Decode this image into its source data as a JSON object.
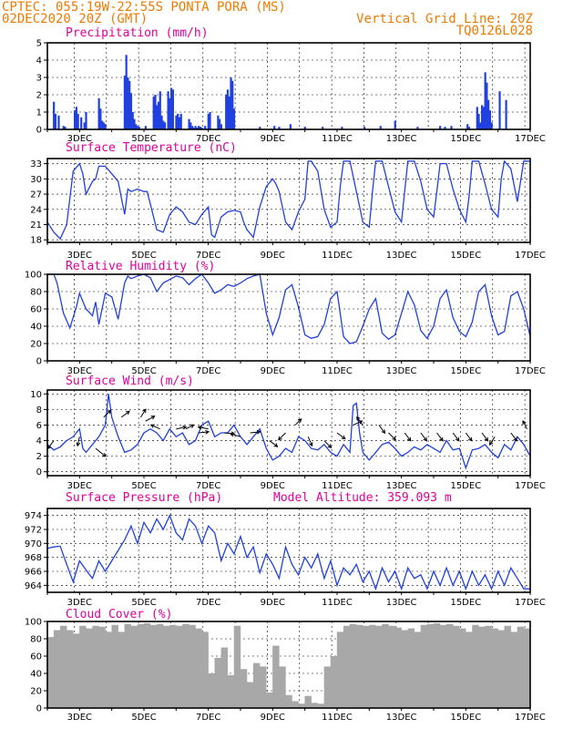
{
  "header": {
    "line1_left": "CPTEC:  055:19W-22:55S  PONTA PORA (MS)",
    "line2_left": "02DEC2020 20Z (GMT)",
    "line1_right": "Vertical Grid Line: 20Z",
    "line2_right": "TQ0126L028"
  },
  "colors": {
    "header": "#f07a00",
    "panel_title": "#e0009a",
    "series_line": "#2040e0",
    "precip_bar": "#2040e0",
    "cloud_bar": "#a8a8a8"
  },
  "x_axis": {
    "start_day": 2.0,
    "end_day": 17.0,
    "labels": [
      "3DEC",
      "5DEC",
      "7DEC",
      "9DEC",
      "11DEC",
      "13DEC",
      "15DEC",
      "17DEC"
    ],
    "label_days": [
      3,
      5,
      7,
      9,
      11,
      13,
      15,
      17
    ]
  },
  "chart_data": [
    {
      "id": "precip",
      "type": "bar",
      "title": "Precipitation (mm/h)",
      "ylim": [
        0,
        5
      ],
      "yticks": [
        0,
        1,
        2,
        3,
        4,
        5
      ],
      "grid": true,
      "x": [
        2.2,
        2.25,
        2.35,
        2.5,
        2.55,
        2.85,
        2.9,
        2.95,
        3.05,
        3.15,
        3.2,
        3.6,
        3.65,
        3.7,
        3.75,
        3.8,
        4.4,
        4.45,
        4.5,
        4.55,
        4.6,
        4.65,
        4.7,
        4.75,
        4.8,
        4.85,
        5.05,
        5.3,
        5.35,
        5.4,
        5.45,
        5.5,
        5.55,
        5.6,
        5.65,
        5.75,
        5.8,
        5.85,
        5.9,
        6.0,
        6.05,
        6.1,
        6.15,
        6.4,
        6.45,
        6.5,
        6.55,
        6.6,
        6.65,
        6.7,
        6.75,
        6.8,
        6.9,
        7.0,
        7.05,
        7.3,
        7.35,
        7.4,
        7.55,
        7.6,
        7.65,
        7.7,
        7.75,
        7.8,
        8.6,
        9.05,
        9.2,
        9.55,
        10.0,
        10.55,
        11.15,
        11.85,
        12.35,
        12.8,
        13.5,
        14.2,
        14.35,
        14.55,
        15.05,
        15.1,
        15.35,
        15.4,
        15.45,
        15.5,
        15.55,
        15.6,
        15.65,
        15.7,
        15.75,
        15.8,
        16.05,
        16.25
      ],
      "values": [
        1.6,
        0.9,
        0.8,
        0.2,
        0.15,
        1.1,
        1.3,
        0.9,
        0.7,
        0.4,
        1.0,
        1.8,
        1.2,
        0.5,
        0.4,
        0.3,
        3.1,
        4.3,
        3.0,
        2.8,
        2.1,
        1.0,
        0.6,
        0.3,
        0.2,
        0.15,
        0.2,
        1.9,
        2.0,
        1.4,
        1.6,
        2.2,
        0.8,
        0.5,
        0.4,
        2.2,
        1.8,
        2.4,
        2.3,
        0.8,
        0.9,
        0.7,
        0.9,
        0.6,
        0.4,
        0.2,
        0.1,
        0.2,
        0.1,
        0.2,
        0.15,
        0.1,
        0.2,
        0.9,
        1.0,
        0.8,
        0.6,
        0.3,
        2.0,
        2.3,
        1.9,
        3.0,
        2.8,
        1.2,
        0.15,
        0.2,
        0.15,
        0.3,
        0.15,
        0.15,
        0.15,
        0.15,
        0.2,
        0.5,
        0.15,
        0.2,
        0.15,
        0.2,
        0.3,
        0.15,
        1.3,
        0.9,
        0.4,
        1.4,
        1.3,
        3.3,
        2.7,
        1.7,
        1.1,
        0.4,
        2.2,
        1.7
      ]
    },
    {
      "id": "temperature",
      "type": "line",
      "title": "Surface Temperature (nC)",
      "ylim": [
        17.5,
        34
      ],
      "yticks": [
        18,
        21,
        24,
        27,
        30,
        33
      ],
      "grid": true,
      "x": [
        2.0,
        2.2,
        2.4,
        2.6,
        2.8,
        3.0,
        3.1,
        3.2,
        3.4,
        3.5,
        3.6,
        3.8,
        4.0,
        4.2,
        4.4,
        4.5,
        4.6,
        4.8,
        5.0,
        5.1,
        5.2,
        5.4,
        5.6,
        5.8,
        6.0,
        6.1,
        6.2,
        6.4,
        6.6,
        6.8,
        7.0,
        7.1,
        7.2,
        7.4,
        7.6,
        7.8,
        8.0,
        8.1,
        8.2,
        8.4,
        8.6,
        8.8,
        9.0,
        9.1,
        9.2,
        9.4,
        9.6,
        9.8,
        10.0,
        10.1,
        10.2,
        10.4,
        10.6,
        10.8,
        11.0,
        11.1,
        11.2,
        11.4,
        11.6,
        11.8,
        12.0,
        12.1,
        12.2,
        12.4,
        12.6,
        12.8,
        13.0,
        13.1,
        13.2,
        13.4,
        13.6,
        13.8,
        14.0,
        14.1,
        14.2,
        14.4,
        14.6,
        14.8,
        15.0,
        15.1,
        15.2,
        15.4,
        15.6,
        15.8,
        16.0,
        16.1,
        16.2,
        16.4,
        16.6,
        16.8,
        17.0
      ],
      "values": [
        21.5,
        19.5,
        18.2,
        21,
        31.5,
        33,
        31,
        27,
        29.5,
        30,
        32.5,
        32.5,
        31,
        29.5,
        23,
        28,
        27.5,
        28,
        27.5,
        27.5,
        25,
        20,
        19.5,
        23,
        24.5,
        24,
        23.5,
        21.5,
        21,
        23,
        24.5,
        19,
        18.5,
        22.5,
        23.5,
        23.8,
        23.5,
        21.5,
        20,
        18.5,
        24.5,
        28.5,
        30,
        29,
        27.5,
        21.5,
        20,
        23.5,
        26,
        33.5,
        33.5,
        31.5,
        24,
        20.5,
        21.5,
        28.5,
        33.5,
        33.5,
        27.5,
        21.5,
        20.5,
        27.5,
        33.5,
        33.5,
        28.5,
        23.5,
        21.5,
        27.5,
        33.5,
        33.5,
        29.5,
        24,
        22.5,
        27.5,
        33,
        33,
        28,
        24,
        21.5,
        26.5,
        33.5,
        33.5,
        29,
        24,
        22.5,
        30,
        33.5,
        32,
        25.5,
        33.5,
        33.5
      ]
    },
    {
      "id": "humidity",
      "type": "line",
      "title": "Relative Humidity (%)",
      "ylim": [
        0,
        100
      ],
      "yticks": [
        0,
        20,
        40,
        60,
        80,
        100
      ],
      "grid": true,
      "x": [
        2.0,
        2.2,
        2.3,
        2.5,
        2.7,
        2.9,
        3.0,
        3.2,
        3.4,
        3.5,
        3.6,
        3.8,
        4.0,
        4.2,
        4.4,
        4.5,
        4.6,
        4.8,
        5.0,
        5.2,
        5.4,
        5.6,
        5.8,
        6.0,
        6.2,
        6.4,
        6.6,
        6.8,
        7.0,
        7.2,
        7.4,
        7.6,
        7.8,
        8.0,
        8.2,
        8.4,
        8.6,
        8.8,
        9.0,
        9.2,
        9.4,
        9.6,
        9.8,
        10.0,
        10.2,
        10.4,
        10.6,
        10.8,
        11.0,
        11.2,
        11.4,
        11.6,
        11.8,
        12.0,
        12.2,
        12.4,
        12.6,
        12.8,
        13.0,
        13.2,
        13.4,
        13.6,
        13.8,
        14.0,
        14.2,
        14.4,
        14.6,
        14.8,
        15.0,
        15.2,
        15.4,
        15.6,
        15.8,
        16.0,
        16.2,
        16.4,
        16.6,
        16.8,
        17.0
      ],
      "values": [
        100,
        100,
        90,
        55,
        38,
        62,
        78,
        60,
        52,
        68,
        42,
        78,
        74,
        48,
        90,
        98,
        95,
        98,
        100,
        96,
        80,
        90,
        94,
        98,
        96,
        88,
        95,
        100,
        90,
        78,
        82,
        88,
        86,
        90,
        95,
        98,
        100,
        55,
        30,
        50,
        82,
        88,
        62,
        30,
        26,
        28,
        42,
        72,
        80,
        28,
        20,
        22,
        40,
        60,
        72,
        32,
        25,
        30,
        55,
        80,
        65,
        35,
        26,
        40,
        72,
        82,
        50,
        34,
        28,
        45,
        80,
        88,
        52,
        30,
        34,
        75,
        80,
        60,
        28
      ]
    },
    {
      "id": "wind",
      "type": "line",
      "title": "Surface Wind (m/s)",
      "ylim": [
        -0.5,
        10.5
      ],
      "yticks": [
        0,
        2,
        4,
        6,
        8,
        10
      ],
      "grid": true,
      "x": [
        2.0,
        2.2,
        2.4,
        2.6,
        2.8,
        3.0,
        3.1,
        3.2,
        3.4,
        3.6,
        3.8,
        3.9,
        4.0,
        4.2,
        4.4,
        4.6,
        4.8,
        5.0,
        5.2,
        5.4,
        5.6,
        5.8,
        6.0,
        6.2,
        6.4,
        6.6,
        6.8,
        7.0,
        7.2,
        7.4,
        7.6,
        7.8,
        8.0,
        8.2,
        8.4,
        8.6,
        8.8,
        9.0,
        9.2,
        9.4,
        9.6,
        9.8,
        10.0,
        10.2,
        10.4,
        10.6,
        10.8,
        11.0,
        11.2,
        11.4,
        11.5,
        11.6,
        11.7,
        11.8,
        12.0,
        12.2,
        12.4,
        12.6,
        12.8,
        13.0,
        13.2,
        13.4,
        13.6,
        13.8,
        14.0,
        14.2,
        14.4,
        14.6,
        14.8,
        15.0,
        15.2,
        15.4,
        15.6,
        15.8,
        16.0,
        16.2,
        16.4,
        16.6,
        16.8,
        17.0
      ],
      "values": [
        3.5,
        2.8,
        3.2,
        4.0,
        4.5,
        5.5,
        3.0,
        2.5,
        3.5,
        4.5,
        6.0,
        10.0,
        7.0,
        4.5,
        2.5,
        2.8,
        3.5,
        5.0,
        5.5,
        5.0,
        4.0,
        5.5,
        4.5,
        5.0,
        3.5,
        4.0,
        6.0,
        6.5,
        4.5,
        5.0,
        5.0,
        6.0,
        4.5,
        3.5,
        4.5,
        5.5,
        3.0,
        1.5,
        2.0,
        3.0,
        2.5,
        4.5,
        4.0,
        3.0,
        2.8,
        3.5,
        2.5,
        2.0,
        3.5,
        2.5,
        8.5,
        8.8,
        5.0,
        2.5,
        1.5,
        2.5,
        3.5,
        3.8,
        3.0,
        2.0,
        2.5,
        3.2,
        2.8,
        3.5,
        3.0,
        2.5,
        4.0,
        2.8,
        3.0,
        0.5,
        2.8,
        3.0,
        3.5,
        2.5,
        1.8,
        3.5,
        2.8,
        4.5,
        3.5,
        2.0
      ]
    },
    {
      "id": "pressure",
      "type": "line",
      "title": "Surface Pressure (hPa)",
      "ylim": [
        963,
        975
      ],
      "yticks": [
        964,
        966,
        968,
        970,
        972,
        974
      ],
      "grid": true,
      "annotation": "Model Altitude: 359.093 m",
      "x": [
        2.0,
        2.2,
        2.4,
        2.6,
        2.8,
        3.0,
        3.2,
        3.4,
        3.6,
        3.8,
        4.0,
        4.2,
        4.4,
        4.6,
        4.8,
        5.0,
        5.2,
        5.4,
        5.6,
        5.8,
        6.0,
        6.2,
        6.4,
        6.6,
        6.8,
        7.0,
        7.2,
        7.4,
        7.6,
        7.8,
        8.0,
        8.2,
        8.4,
        8.6,
        8.8,
        9.0,
        9.2,
        9.4,
        9.6,
        9.8,
        10.0,
        10.2,
        10.4,
        10.6,
        10.8,
        11.0,
        11.2,
        11.4,
        11.6,
        11.8,
        12.0,
        12.2,
        12.4,
        12.6,
        12.8,
        13.0,
        13.2,
        13.4,
        13.6,
        13.8,
        14.0,
        14.2,
        14.4,
        14.6,
        14.8,
        15.0,
        15.2,
        15.4,
        15.6,
        15.8,
        16.0,
        16.2,
        16.4,
        16.6,
        16.8,
        17.0
      ],
      "values": [
        969.3,
        969.5,
        969.6,
        967.0,
        964.5,
        967.5,
        966.2,
        965.0,
        967.5,
        966.0,
        967.5,
        969.0,
        970.5,
        972.5,
        970.0,
        973.0,
        971.5,
        973.5,
        972.0,
        974.0,
        971.5,
        970.5,
        973.5,
        972.5,
        970.0,
        972.5,
        971.5,
        967.5,
        970.0,
        968.5,
        971.0,
        968.0,
        969.5,
        965.8,
        968.5,
        967.0,
        965.0,
        969.5,
        967.0,
        965.5,
        968.0,
        966.5,
        968.5,
        965.0,
        967.5,
        964.0,
        966.5,
        965.5,
        967.0,
        964.5,
        966.0,
        963.5,
        966.5,
        964.5,
        966.0,
        963.5,
        966.5,
        965.0,
        965.5,
        963.5,
        966.0,
        964.0,
        966.5,
        964.0,
        966.0,
        963.5,
        966.0,
        964.0,
        965.5,
        963.5,
        966.0,
        964.0,
        966.5,
        965.0,
        963.5,
        963.5
      ]
    },
    {
      "id": "cloud",
      "type": "bar",
      "title": "Cloud Cover (%)",
      "ylim": [
        0,
        100
      ],
      "yticks": [
        0,
        20,
        40,
        60,
        80,
        100
      ],
      "grid": true,
      "x": [
        2.1,
        2.3,
        2.5,
        2.7,
        2.9,
        3.1,
        3.3,
        3.5,
        3.7,
        3.9,
        4.1,
        4.3,
        4.5,
        4.7,
        4.9,
        5.1,
        5.3,
        5.5,
        5.7,
        5.9,
        6.1,
        6.3,
        6.5,
        6.7,
        6.9,
        7.1,
        7.3,
        7.5,
        7.7,
        7.9,
        8.1,
        8.3,
        8.5,
        8.7,
        8.9,
        9.1,
        9.3,
        9.5,
        9.7,
        9.9,
        10.1,
        10.3,
        10.5,
        10.7,
        10.9,
        11.1,
        11.3,
        11.5,
        11.7,
        11.9,
        12.1,
        12.3,
        12.5,
        12.7,
        12.9,
        13.1,
        13.3,
        13.5,
        13.7,
        13.9,
        14.1,
        14.3,
        14.5,
        14.7,
        14.9,
        15.1,
        15.3,
        15.5,
        15.7,
        15.9,
        16.1,
        16.3,
        16.5,
        16.7,
        16.9
      ],
      "values": [
        82,
        90,
        95,
        90,
        86,
        95,
        92,
        95,
        94,
        88,
        96,
        88,
        97,
        95,
        97,
        98,
        96,
        97,
        95,
        96,
        95,
        97,
        96,
        92,
        88,
        40,
        58,
        70,
        38,
        95,
        45,
        30,
        52,
        48,
        18,
        72,
        48,
        15,
        8,
        5,
        14,
        6,
        5,
        48,
        60,
        88,
        95,
        97,
        96,
        95,
        96,
        95,
        97,
        95,
        93,
        90,
        92,
        88,
        96,
        97,
        98,
        96,
        97,
        95,
        92,
        88,
        96,
        94,
        95,
        92,
        90,
        95,
        88,
        94,
        92
      ]
    },
    {
      "id": "wind_vectors",
      "type": "scatter",
      "x": [
        2.2,
        3.0,
        3.5,
        3.75,
        4.3,
        4.9,
        5.05,
        5.5,
        6.0,
        6.3,
        6.7,
        7.0,
        7.5,
        8.0,
        8.3,
        8.9,
        9.4,
        9.7,
        10.1,
        10.6,
        11.0,
        11.5,
        11.8,
        12.3,
        12.6,
        13.1,
        13.6,
        14.1,
        14.6,
        15.0,
        15.5,
        15.9,
        16.4,
        16.9
      ],
      "values": [
        4,
        4.5,
        3,
        7,
        7,
        7,
        6.5,
        5.5,
        5.5,
        5.5,
        5,
        5.5,
        5,
        4.5,
        5,
        4,
        5,
        6,
        4.5,
        4,
        5,
        6,
        6,
        6,
        5,
        5,
        5,
        5,
        5,
        5,
        5,
        4.5,
        5,
        5.5
      ],
      "u": [
        -0.6,
        -0.2,
        1.0,
        0.7,
        0.8,
        0.5,
        0.9,
        -0.9,
        1.0,
        0.8,
        1.0,
        -1.0,
        1.0,
        -1.0,
        1.0,
        0.8,
        -0.7,
        0.6,
        0.4,
        0.7,
        0.8,
        0.9,
        -0.6,
        0.6,
        0.7,
        0.6,
        0.6,
        0.6,
        0.6,
        0.6,
        0.6,
        -0.5,
        0.6,
        -0.4
      ],
      "v": [
        -0.8,
        -0.9,
        -0.8,
        0.7,
        0.6,
        0.8,
        0.5,
        0.4,
        0.2,
        0.4,
        0.1,
        0.2,
        -0.1,
        0.3,
        0.1,
        -0.6,
        -0.7,
        0.6,
        -0.9,
        -0.7,
        -0.6,
        0.4,
        0.8,
        -0.8,
        -0.7,
        -0.8,
        -0.8,
        -0.8,
        -0.8,
        -0.8,
        -0.8,
        -0.8,
        -0.8,
        0.8
      ]
    }
  ]
}
